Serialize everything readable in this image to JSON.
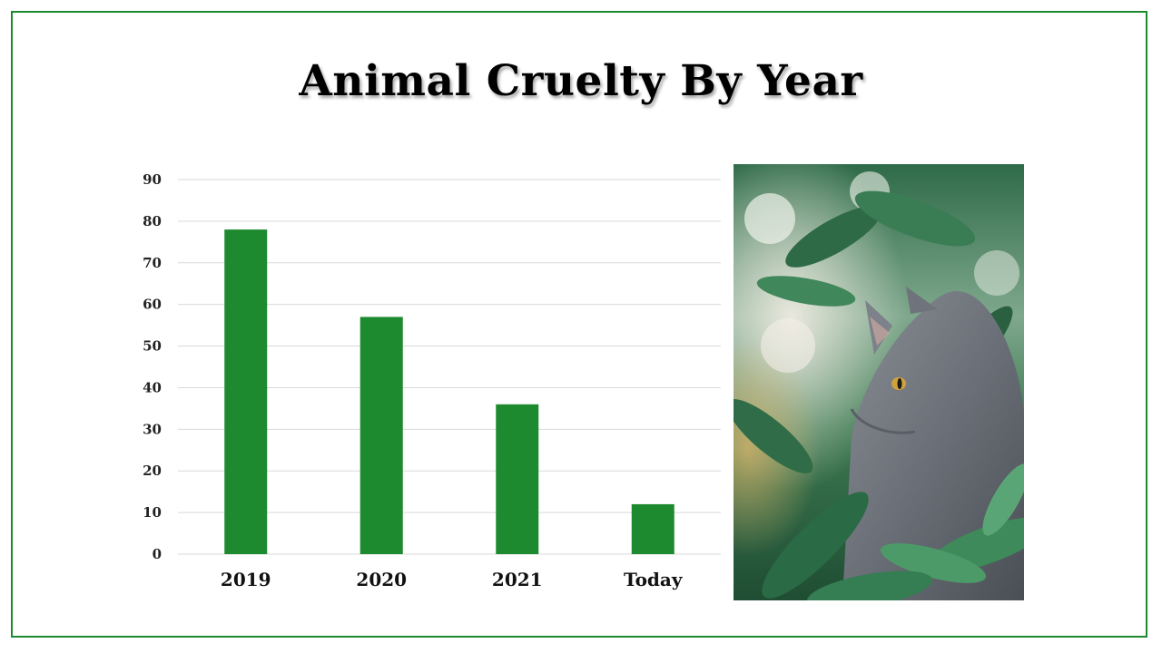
{
  "title": "Animal Cruelty By Year",
  "colors": {
    "frame": "#1e8a2f",
    "bar": "#1e8a2f",
    "grid": "#d9d9d9"
  },
  "photo": {
    "subject": "grey cat among green leaves"
  },
  "chart_data": {
    "type": "bar",
    "categories": [
      "2019",
      "2020",
      "2021",
      "Today"
    ],
    "series": [
      {
        "values": [
          78,
          57,
          36,
          12
        ]
      }
    ],
    "ylim": [
      0,
      90
    ],
    "yticks": [
      0,
      10,
      20,
      30,
      40,
      50,
      60,
      70,
      80,
      90
    ],
    "grid": true,
    "legend": "none"
  }
}
